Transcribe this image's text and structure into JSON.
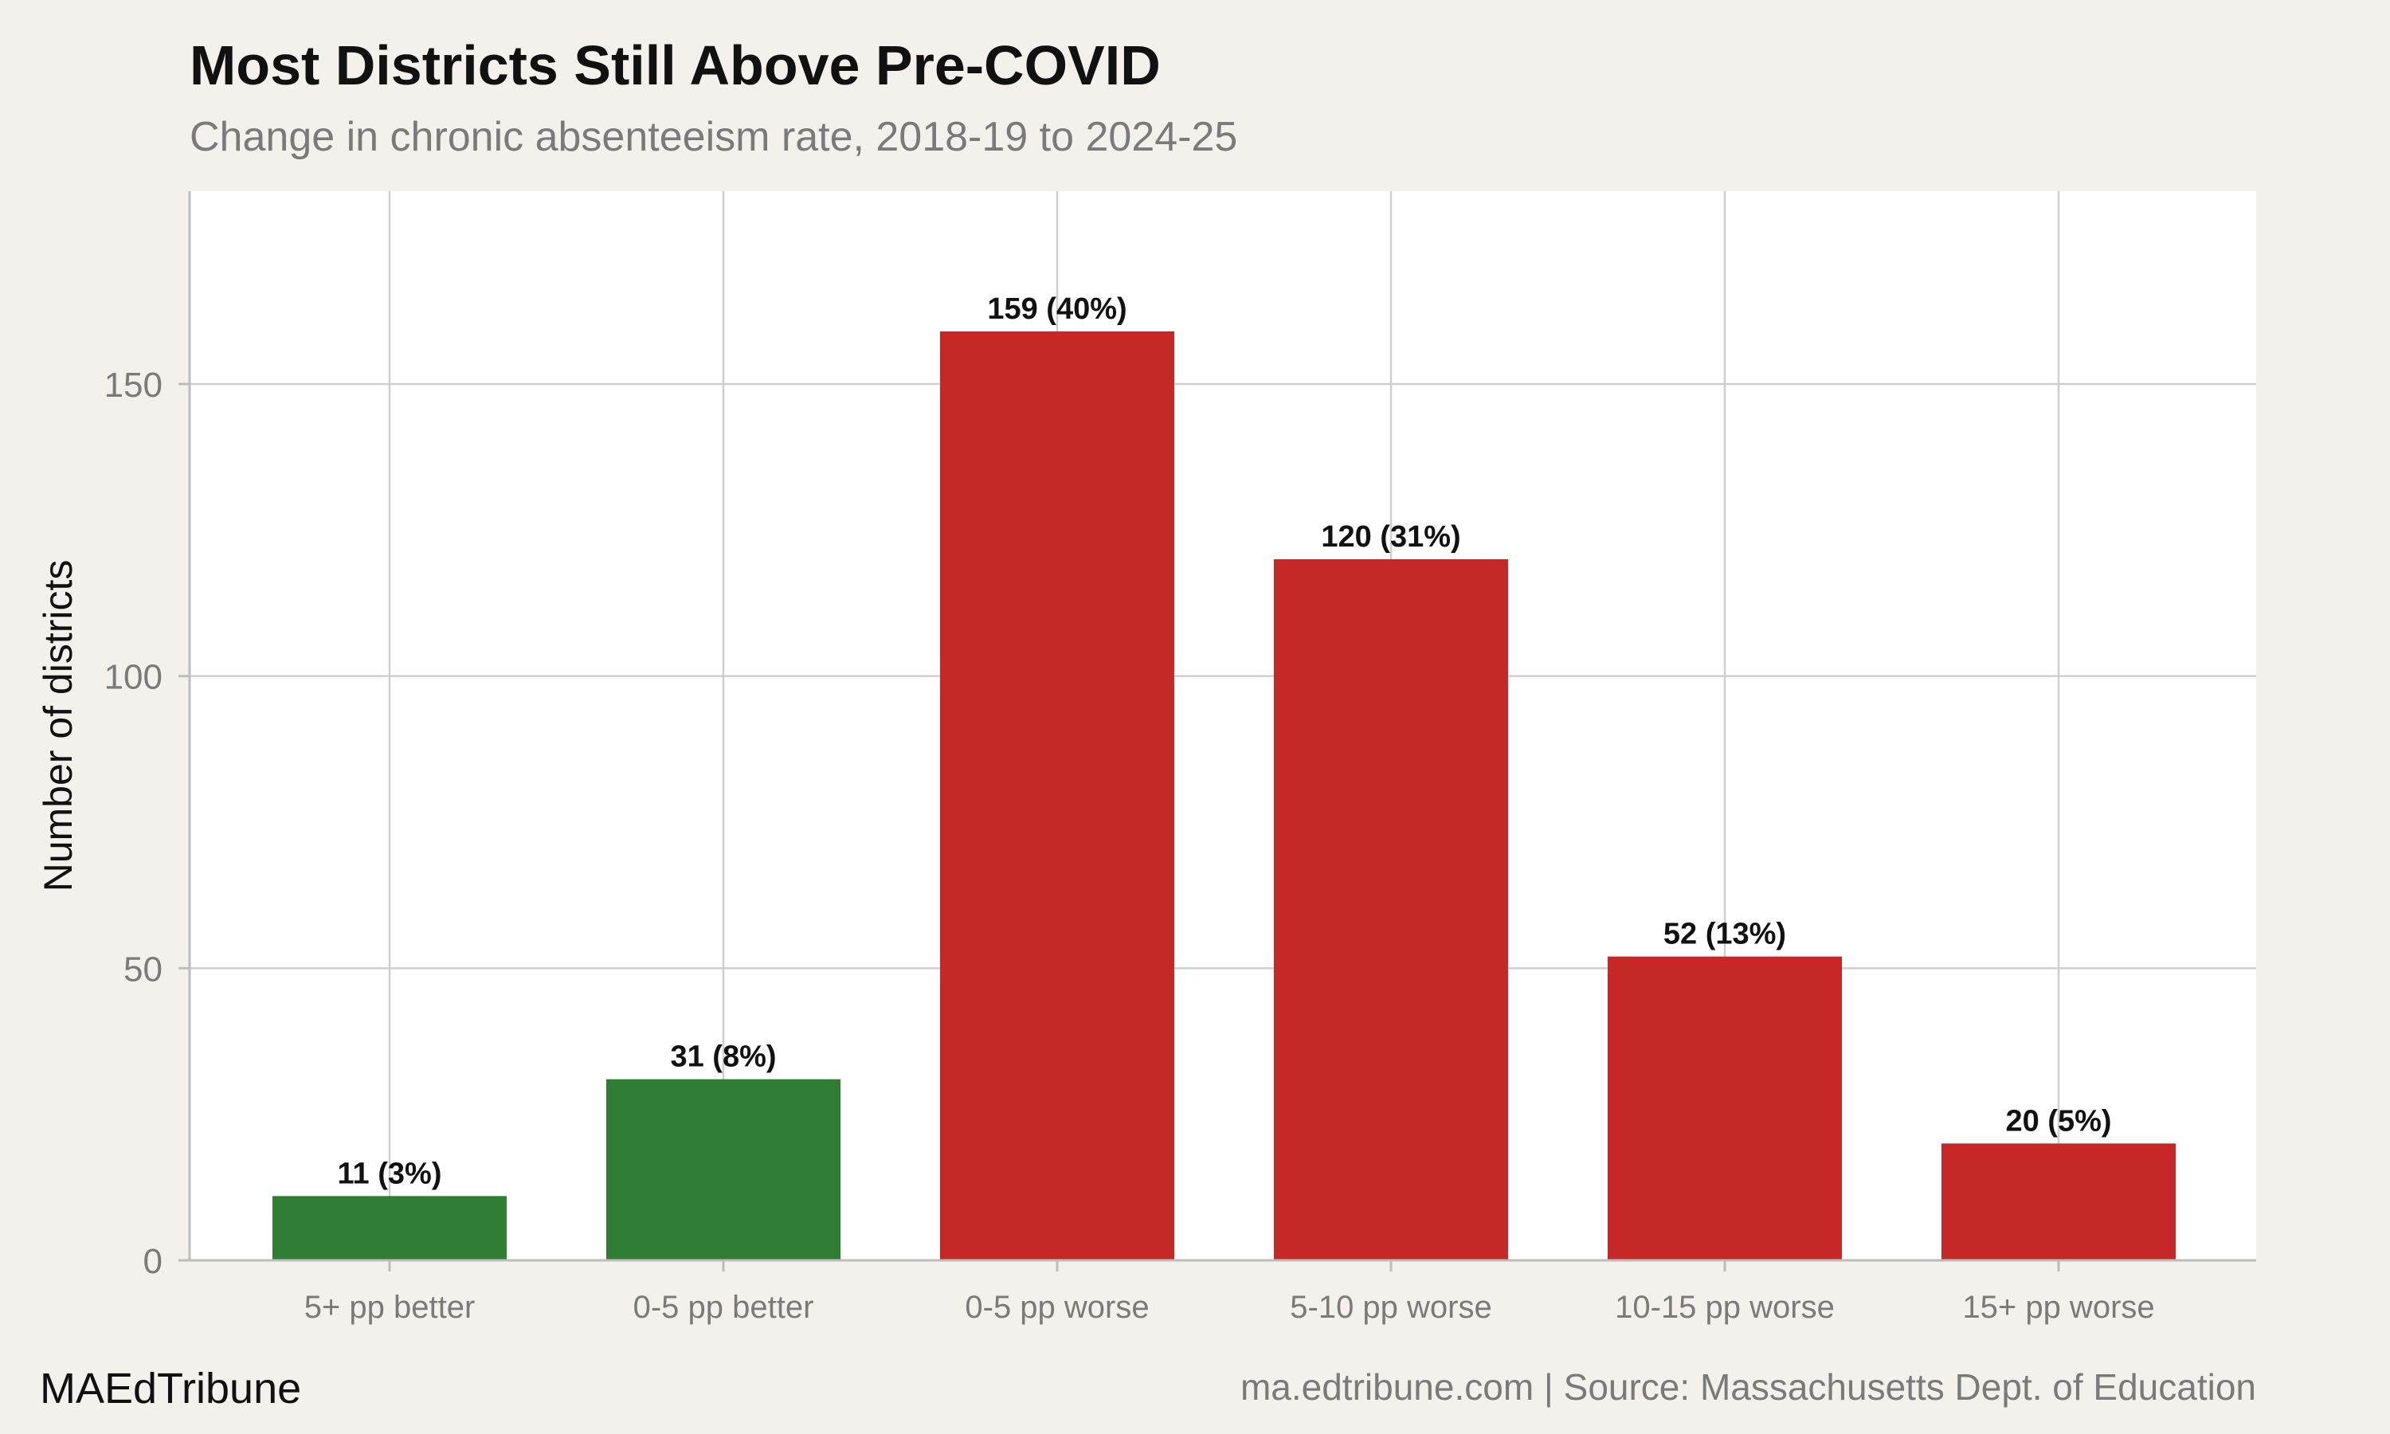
{
  "chart_data": {
    "type": "bar",
    "title": "Most Districts Still Above Pre-COVID",
    "subtitle": "Change in chronic absenteeism rate, 2018-19 to 2024-25",
    "xlabel": "",
    "ylabel": "Number of districts",
    "categories": [
      "5+ pp better",
      "0-5 pp better",
      "0-5 pp worse",
      "5-10 pp worse",
      "10-15 pp worse",
      "15+ pp worse"
    ],
    "values": [
      11,
      31,
      159,
      120,
      52,
      20
    ],
    "data_labels": [
      "11 (3%)",
      "31 (8%)",
      "159 (40%)",
      "120 (31%)",
      "52 (13%)",
      "20 (5%)"
    ],
    "bar_colors": [
      "#2e7d32",
      "#2e7d32",
      "#c62828",
      "#c62828",
      "#c62828",
      "#c62828"
    ],
    "ylim": [
      0,
      183
    ],
    "yticks": [
      0,
      50,
      100,
      150
    ],
    "grid": true,
    "legend": "none"
  },
  "footer": {
    "brand": "MAEdTribune",
    "source": "ma.edtribune.com | Source: Massachusetts Dept. of Education"
  }
}
